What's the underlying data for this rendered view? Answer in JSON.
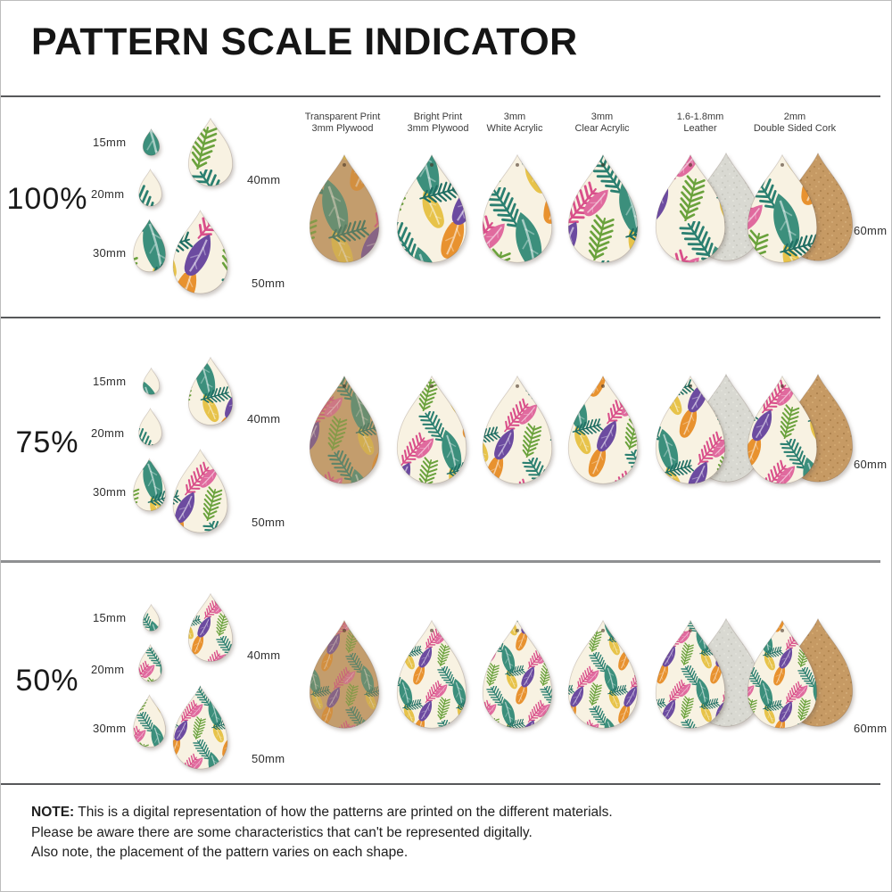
{
  "page": {
    "title": "PATTERN SCALE INDICATOR"
  },
  "materials": [
    {
      "line1": "Transparent Print",
      "line2": "3mm Plywood"
    },
    {
      "line1": "Bright Print",
      "line2": "3mm Plywood"
    },
    {
      "line1": "3mm",
      "line2": "White Acrylic"
    },
    {
      "line1": "3mm",
      "line2": "Clear Acrylic"
    },
    {
      "line1": "1.6-1.8mm",
      "line2": "Leather"
    },
    {
      "line1": "2mm",
      "line2": "Double Sided Cork"
    }
  ],
  "rows": [
    {
      "percent": "100%",
      "pattern_scale": 1,
      "sizes": {
        "s15": "15mm",
        "s20": "20mm",
        "s30": "30mm",
        "s40": "40mm",
        "s50": "50mm",
        "s60": "60mm"
      }
    },
    {
      "percent": "75%",
      "pattern_scale": 0.75,
      "sizes": {
        "s15": "15mm",
        "s20": "20mm",
        "s30": "30mm",
        "s40": "40mm",
        "s50": "50mm",
        "s60": "60mm"
      }
    },
    {
      "percent": "50%",
      "pattern_scale": 0.5,
      "sizes": {
        "s15": "15mm",
        "s20": "20mm",
        "s30": "30mm",
        "s40": "40mm",
        "s50": "50mm",
        "s60": "60mm"
      }
    }
  ],
  "note": {
    "label": "NOTE:",
    "lines": [
      "This is a digital representation of how the patterns are printed on the different materials.",
      "Please be aware there are some characteristics that can't be represented digitally.",
      "Also note, the placement of the pattern varies on each shape."
    ]
  },
  "palette": {
    "cream_background": "#f8f2e2",
    "plywood_wood": "#cfa878",
    "leather_back": "#d9d9d2",
    "cork_back": "#c69a64",
    "teal": "#2a7f70",
    "dark_teal": "#1f6e63",
    "sea_green": "#3c8f7c",
    "leaf_green": "#6aa23c",
    "purple": "#6c4ba0",
    "magenta": "#d94f8a",
    "pink": "#e06a9e",
    "orange": "#e8922f",
    "yellow": "#e7c34a",
    "separator_line": "#57585a"
  }
}
